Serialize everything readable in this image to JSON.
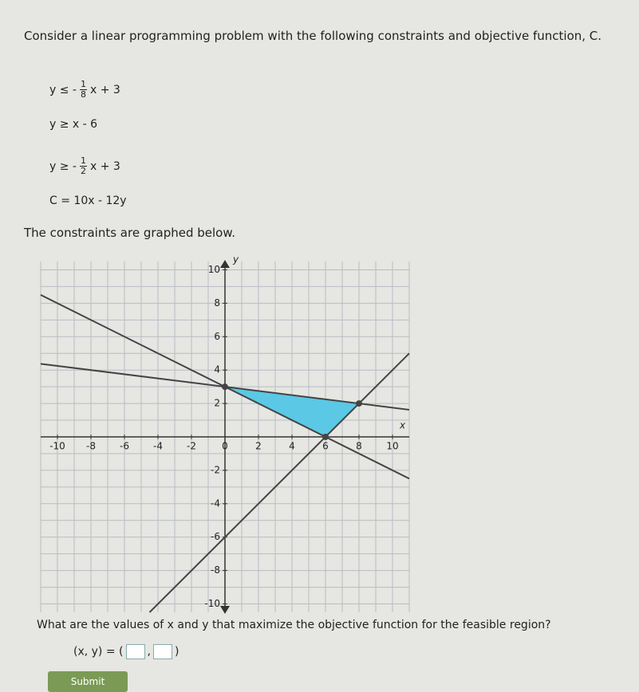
{
  "intro": "Consider a linear programming problem with the following constraints and objective function, C.",
  "constraints": [
    {
      "lhs": "y ≤ -",
      "num": "1",
      "den": "8",
      "rhs": "x + 3"
    },
    {
      "lhs": "y ≥ x - 6"
    },
    {
      "lhs": "y ≥ -",
      "num": "1",
      "den": "2",
      "rhs": "x + 3"
    }
  ],
  "objective": "C = 10x - 12y",
  "graph_caption": "The constraints are graphed below.",
  "chart_data": {
    "type": "line",
    "xlabel": "x",
    "ylabel": "y",
    "xlim": [
      -11,
      11
    ],
    "ylim": [
      -10.5,
      10.5
    ],
    "xticks": [
      -10,
      -8,
      -6,
      -4,
      -2,
      0,
      2,
      4,
      6,
      8,
      10
    ],
    "yticks": [
      -10,
      -8,
      -6,
      -4,
      -2,
      2,
      4,
      6,
      8,
      10
    ],
    "grid": true,
    "series": [
      {
        "x": [
          -11,
          11
        ],
        "values": [
          4.375,
          1.625
        ],
        "color": "#444"
      },
      {
        "x": [
          -4.5,
          11
        ],
        "values": [
          -10.5,
          5
        ],
        "color": "#444"
      },
      {
        "x": [
          -11,
          11
        ],
        "values": [
          8.5,
          -2.5
        ],
        "color": "#444"
      }
    ],
    "region": {
      "x": [
        0,
        8,
        6
      ],
      "values": [
        3,
        2,
        0
      ],
      "color": "#5bc8e6"
    },
    "points": {
      "x": [
        0,
        8,
        6
      ],
      "values": [
        3,
        2,
        0
      ],
      "color": "#444"
    }
  },
  "question": "What are the values of x and y that maximize the objective function for the feasible region?",
  "answer_prefix": "(x, y) =",
  "submit": "Submit"
}
